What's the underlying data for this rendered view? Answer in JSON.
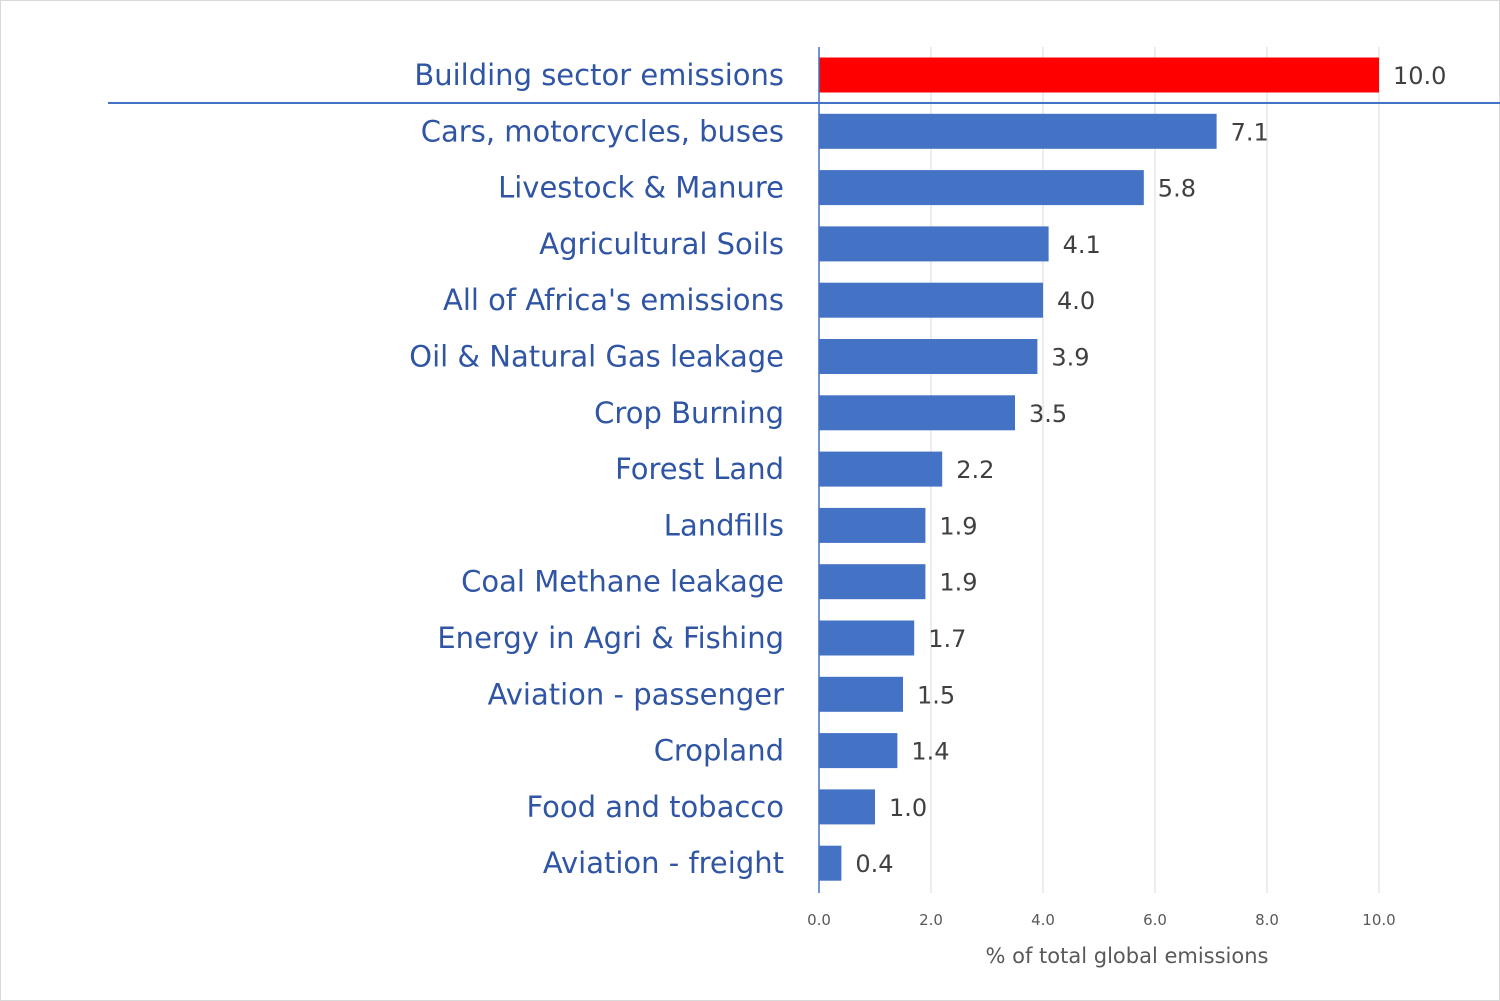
{
  "chart_data": {
    "type": "bar",
    "orientation": "horizontal",
    "title": "",
    "xlabel": "% of total global emissions",
    "ylabel": "",
    "xlim": [
      0,
      10
    ],
    "xticks": [
      "0.0",
      "2.0",
      "4.0",
      "6.0",
      "8.0",
      "10.0"
    ],
    "xtick_values": [
      0,
      2,
      4,
      6,
      8,
      10
    ],
    "grid": true,
    "categories": [
      "Building sector emissions",
      "Cars, motorcycles, buses",
      "Livestock & Manure",
      "Agricultural Soils",
      "All of Africa's emissions",
      "Oil & Natural Gas leakage",
      "Crop Burning",
      "Forest Land",
      "Landfills",
      "Coal Methane leakage",
      "Energy in Agri & Fishing",
      "Aviation - passenger",
      "Cropland",
      "Food and tobacco",
      "Aviation - freight"
    ],
    "values": [
      10.0,
      7.1,
      5.8,
      4.1,
      4.0,
      3.9,
      3.5,
      2.2,
      1.9,
      1.9,
      1.7,
      1.5,
      1.4,
      1.0,
      0.4
    ],
    "value_labels": [
      "10.0",
      "7.1",
      "5.8",
      "4.1",
      "4.0",
      "3.9",
      "3.5",
      "2.2",
      "1.9",
      "1.9",
      "1.7",
      "1.5",
      "1.4",
      "1.0",
      "0.4"
    ],
    "highlight_index": 0,
    "colors": {
      "highlight_bar": "#ff0000",
      "bar": "#4472c4",
      "category_text": "#2f55a4",
      "separator": "#4472c4",
      "gridline": "#d9d9d9",
      "value_text": "#404040",
      "axis_text": "#595959"
    }
  }
}
